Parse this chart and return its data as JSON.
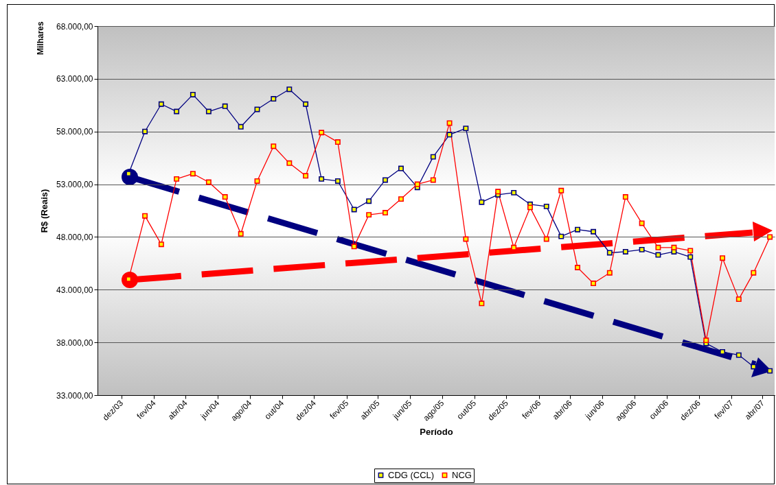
{
  "chart_data": {
    "type": "line",
    "xlabel": "Período",
    "ylabel": "R$ (Reais)",
    "annotations": [
      "Milhares"
    ],
    "x": [
      "2003-12-15",
      "2004-01-15",
      "2004-02-15",
      "2004-03-15",
      "2004-04-15",
      "2004-05-15",
      "2004-06-15",
      "2004-07-15",
      "2004-08-15",
      "2004-09-15",
      "2004-10-15",
      "2004-11-15",
      "2004-12-15",
      "2005-01-15",
      "2005-02-15",
      "2005-03-15",
      "2005-04-15",
      "2005-05-15",
      "2005-06-15",
      "2005-07-15",
      "2005-08-15",
      "2005-09-15",
      "2005-10-15",
      "2005-11-15",
      "2005-12-15",
      "2006-01-15",
      "2006-02-15",
      "2006-03-15",
      "2006-04-15",
      "2006-05-15",
      "2006-06-15",
      "2006-07-15",
      "2006-08-15",
      "2006-09-15",
      "2006-10-15",
      "2006-11-15",
      "2006-12-15",
      "2007-01-15",
      "2007-02-15",
      "2007-03-15",
      "2007-04-15"
    ],
    "series": [
      {
        "name": "CDG (CCL)",
        "color": "#000080",
        "values": [
          54000,
          58000,
          60600,
          59900,
          61500,
          59900,
          60400,
          58450,
          60100,
          61100,
          62000,
          60600,
          53500,
          53300,
          50600,
          51400,
          53400,
          54500,
          52700,
          55600,
          57700,
          58300,
          51300,
          52000,
          52200,
          51100,
          50900,
          48050,
          48700,
          48500,
          46500,
          46600,
          46800,
          46300,
          46600,
          46100,
          37900,
          37100,
          36800,
          35700,
          35300
        ]
      },
      {
        "name": "NCG",
        "color": "#ff0000",
        "values": [
          44000,
          50000,
          47300,
          53500,
          54000,
          53200,
          51800,
          48300,
          53300,
          56600,
          55000,
          53800,
          57900,
          57000,
          47100,
          50100,
          50300,
          51600,
          53000,
          53400,
          58800,
          47800,
          41700,
          52300,
          47000,
          50800,
          47800,
          52400,
          45100,
          43600,
          44600,
          51800,
          49300,
          47000,
          47000,
          46700,
          38200,
          46000,
          42100,
          44600,
          48000
        ]
      }
    ],
    "xlim": [
      "2003-10-17",
      "2007-04-24"
    ],
    "xticks": [
      {
        "value": "2003-12-01",
        "label": "dez/03"
      },
      {
        "value": "2004-02-01",
        "label": "fev/04"
      },
      {
        "value": "2004-04-01",
        "label": "abr/04"
      },
      {
        "value": "2004-06-01",
        "label": "jun/04"
      },
      {
        "value": "2004-08-01",
        "label": "ago/04"
      },
      {
        "value": "2004-10-01",
        "label": "out/04"
      },
      {
        "value": "2004-12-01",
        "label": "dez/04"
      },
      {
        "value": "2005-02-01",
        "label": "fev/05"
      },
      {
        "value": "2005-04-01",
        "label": "abr/05"
      },
      {
        "value": "2005-06-01",
        "label": "jun/05"
      },
      {
        "value": "2005-08-01",
        "label": "ago/05"
      },
      {
        "value": "2005-10-01",
        "label": "out/05"
      },
      {
        "value": "2005-12-01",
        "label": "dez/05"
      },
      {
        "value": "2006-02-01",
        "label": "fev/06"
      },
      {
        "value": "2006-04-01",
        "label": "abr/06"
      },
      {
        "value": "2006-06-01",
        "label": "jun/06"
      },
      {
        "value": "2006-08-01",
        "label": "ago/06"
      },
      {
        "value": "2006-10-01",
        "label": "out/06"
      },
      {
        "value": "2006-12-01",
        "label": "dez/06"
      },
      {
        "value": "2007-02-01",
        "label": "fev/07"
      },
      {
        "value": "2007-04-01",
        "label": "abr/07"
      }
    ],
    "ylim": [
      33000,
      68000
    ],
    "yticks": [
      {
        "value": 33000,
        "label": "33.000,00"
      },
      {
        "value": 38000,
        "label": "38.000,00"
      },
      {
        "value": 43000,
        "label": "43.000,00"
      },
      {
        "value": 48000,
        "label": "48.000,00"
      },
      {
        "value": 53000,
        "label": "53.000,00"
      },
      {
        "value": 58000,
        "label": "58.000,00"
      },
      {
        "value": 63000,
        "label": "63.000,00"
      },
      {
        "value": 68000,
        "label": "68.000,00"
      }
    ],
    "grid": "y",
    "legend": "bottom",
    "marker": "square"
  }
}
